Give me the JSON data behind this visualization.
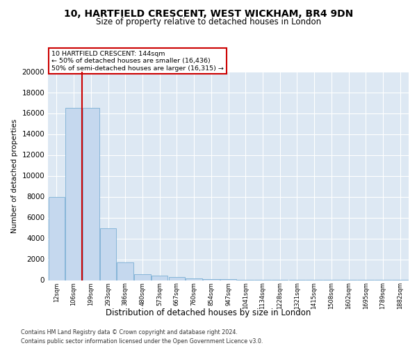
{
  "title1": "10, HARTFIELD CRESCENT, WEST WICKHAM, BR4 9DN",
  "title2": "Size of property relative to detached houses in London",
  "xlabel": "Distribution of detached houses by size in London",
  "ylabel": "Number of detached properties",
  "categories": [
    "12sqm",
    "106sqm",
    "199sqm",
    "293sqm",
    "386sqm",
    "480sqm",
    "573sqm",
    "667sqm",
    "760sqm",
    "854sqm",
    "947sqm",
    "1041sqm",
    "1134sqm",
    "1228sqm",
    "1321sqm",
    "1415sqm",
    "1508sqm",
    "1602sqm",
    "1695sqm",
    "1789sqm",
    "1882sqm"
  ],
  "values": [
    8000,
    16500,
    16500,
    5000,
    1700,
    600,
    420,
    300,
    200,
    130,
    80,
    50,
    30,
    15,
    8,
    5,
    3,
    2,
    1,
    1,
    1
  ],
  "bar_color": "#c5d8ee",
  "bar_edge_color": "#7aaed4",
  "vline_color": "#cc0000",
  "vline_pos": 1.5,
  "annotation_title": "10 HARTFIELD CRESCENT: 144sqm",
  "annotation_line1": "← 50% of detached houses are smaller (16,436)",
  "annotation_line2": "50% of semi-detached houses are larger (16,315) →",
  "annotation_box_edgecolor": "#cc0000",
  "ylim": [
    0,
    20000
  ],
  "yticks": [
    0,
    2000,
    4000,
    6000,
    8000,
    10000,
    12000,
    14000,
    16000,
    18000,
    20000
  ],
  "footer1": "Contains HM Land Registry data © Crown copyright and database right 2024.",
  "footer2": "Contains public sector information licensed under the Open Government Licence v3.0.",
  "bg_color": "#ffffff",
  "plot_bg_color": "#dde8f3",
  "grid_color": "#ffffff"
}
